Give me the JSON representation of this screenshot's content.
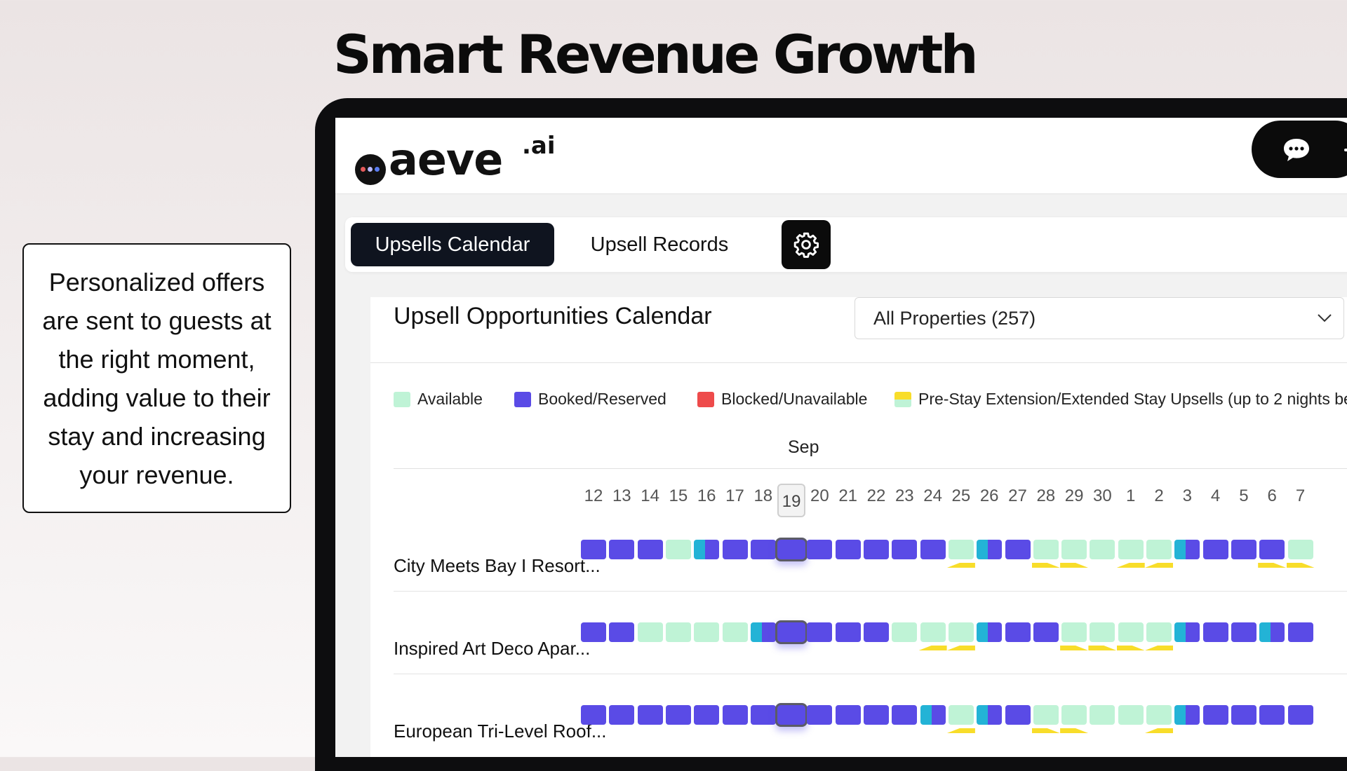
{
  "headline": "Smart Revenue Growth",
  "callout_text": "Personalized offers are sent to guests at the right moment, adding value to their stay and increasing your revenue.",
  "brand": {
    "logo_text": "aeve",
    "logo_suffix": ".ai",
    "logo_dot_colors": [
      "#e45a5a",
      "#b9b9ff",
      "#5a7cf0"
    ]
  },
  "header": {
    "chat_icon": "chat-bubble-icon"
  },
  "tabs": [
    {
      "label": "Upsells Calendar",
      "active": true
    },
    {
      "label": "Upsell Records",
      "active": false
    }
  ],
  "settings_icon": "gear-icon",
  "panel": {
    "title": "Upsell Opportunities Calendar",
    "property_filter": {
      "selected": "All Properties (257)"
    }
  },
  "legend": [
    {
      "label": "Available",
      "color": "#bff3d6"
    },
    {
      "label": "Booked/Reserved",
      "color": "#5a4be6"
    },
    {
      "label": "Blocked/Unavailable",
      "color": "#ee4b4b"
    },
    {
      "label": "Pre-Stay Extension/Extended Stay Upsells (up to 2 nights be",
      "color": "#f8dd2a"
    }
  ],
  "calendar": {
    "month": "Sep",
    "days": [
      "12",
      "13",
      "14",
      "15",
      "16",
      "17",
      "18",
      "19",
      "20",
      "21",
      "22",
      "23",
      "24",
      "25",
      "26",
      "27",
      "28",
      "29",
      "30",
      "1",
      "2",
      "3",
      "4",
      "5",
      "6",
      "7"
    ],
    "today": "19",
    "status_colors": {
      "available": "#bff3d6",
      "booked": "#5a4be6",
      "turnover": "#23b3d6",
      "upsell": "#f8dd2a"
    },
    "properties": [
      {
        "name": "City Meets Bay I Resort...",
        "days": [
          "B",
          "B",
          "B",
          "A",
          "T",
          "B",
          "B",
          "B",
          "B",
          "B",
          "B",
          "B",
          "B",
          "A",
          "T",
          "B",
          "A",
          "A",
          "A",
          "A",
          "A",
          "T",
          "B",
          "B",
          "B",
          "A"
        ],
        "upsells": [
          {
            "i": 13,
            "dir": "left"
          },
          {
            "i": 16,
            "dir": "right"
          },
          {
            "i": 17,
            "dir": "right"
          },
          {
            "i": 19,
            "dir": "left"
          },
          {
            "i": 20,
            "dir": "left"
          },
          {
            "i": 24,
            "dir": "right"
          },
          {
            "i": 25,
            "dir": "right"
          }
        ]
      },
      {
        "name": "Inspired Art Deco Apar...",
        "days": [
          "B",
          "B",
          "A",
          "A",
          "A",
          "A",
          "T",
          "B",
          "B",
          "B",
          "B",
          "A",
          "A",
          "A",
          "T",
          "B",
          "B",
          "A",
          "A",
          "A",
          "A",
          "T",
          "B",
          "B",
          "T",
          "B"
        ],
        "upsells": [
          {
            "i": 12,
            "dir": "left"
          },
          {
            "i": 13,
            "dir": "left"
          },
          {
            "i": 17,
            "dir": "right"
          },
          {
            "i": 18,
            "dir": "right"
          },
          {
            "i": 19,
            "dir": "right"
          },
          {
            "i": 20,
            "dir": "left"
          }
        ]
      },
      {
        "name": "European Tri-Level Roof...",
        "days": [
          "B",
          "B",
          "B",
          "B",
          "B",
          "B",
          "B",
          "B",
          "B",
          "B",
          "B",
          "B",
          "T",
          "A",
          "T",
          "B",
          "A",
          "A",
          "A",
          "A",
          "A",
          "T",
          "B",
          "B",
          "B",
          "B"
        ],
        "upsells": [
          {
            "i": 13,
            "dir": "left"
          },
          {
            "i": 16,
            "dir": "right"
          },
          {
            "i": 17,
            "dir": "right"
          },
          {
            "i": 20,
            "dir": "left"
          }
        ]
      }
    ]
  }
}
